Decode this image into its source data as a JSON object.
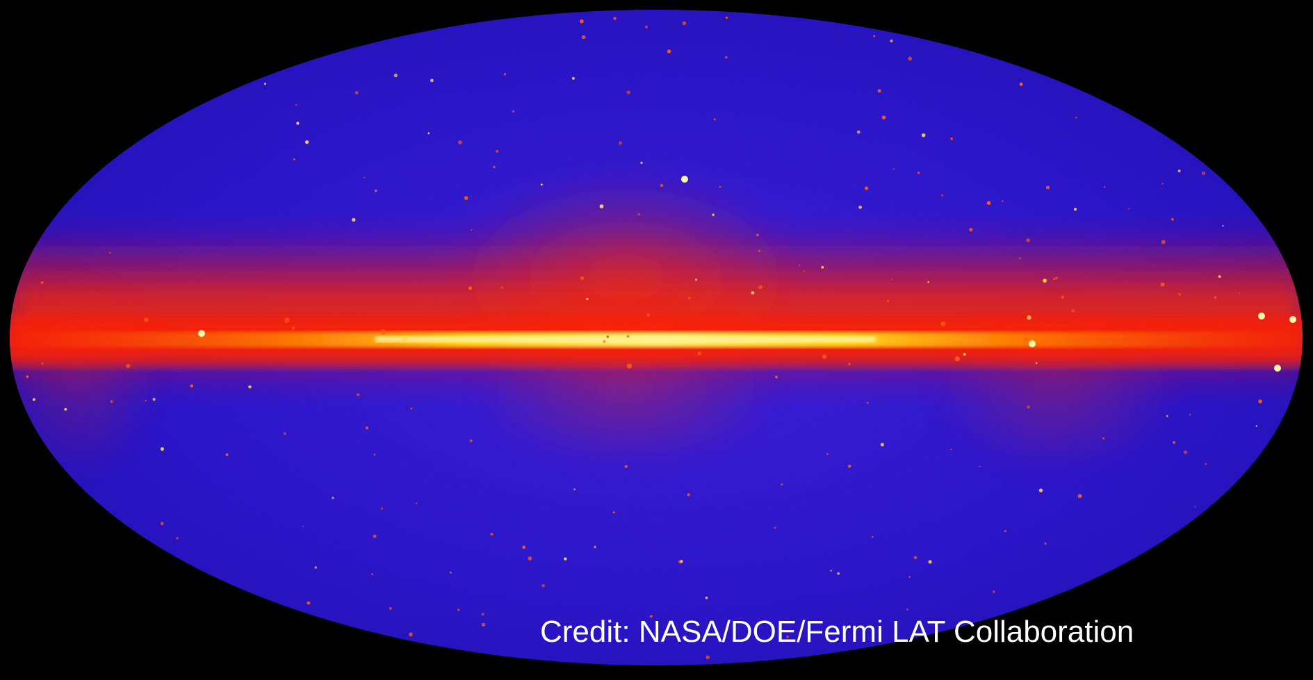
{
  "image": {
    "subject": "gamma-ray-all-sky-map",
    "projection": "elliptical"
  },
  "credit": {
    "text": "Credit: NASA/DOE/Fermi LAT Collaboration"
  },
  "colors": {
    "background": "#000000",
    "sky_field": "#2a14d8",
    "plane_glow": "#ff1a00",
    "plane_core": "#ffe64a",
    "credit_text": "#ffffff"
  }
}
